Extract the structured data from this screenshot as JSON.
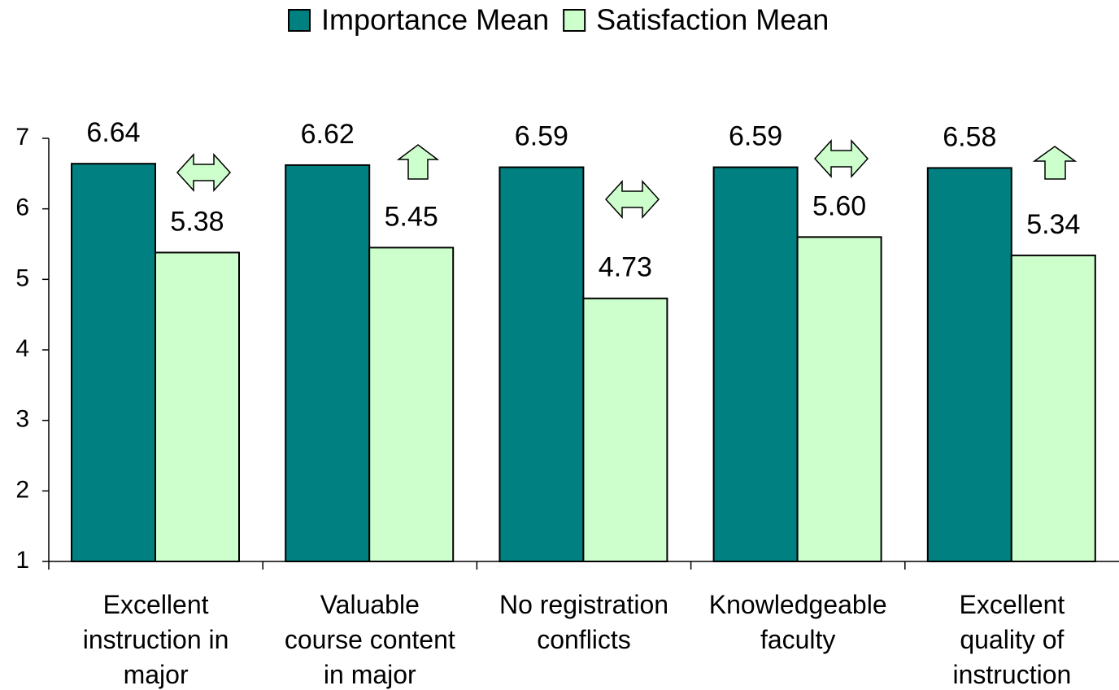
{
  "chart_data": {
    "type": "bar",
    "categories": [
      "Excellent\ninstruction in\nmajor",
      "Valuable\ncourse content\nin major",
      "No registration\nconflicts",
      "Knowledgeable\nfaculty",
      "Excellent\nquality of\ninstruction"
    ],
    "series": [
      {
        "name": "Importance Mean",
        "color": "#008080",
        "values": [
          6.64,
          6.62,
          6.59,
          6.59,
          6.58
        ]
      },
      {
        "name": "Satisfaction Mean",
        "color": "#ccffcc",
        "values": [
          5.38,
          5.45,
          4.73,
          5.6,
          5.34
        ],
        "value_labels": [
          "5.38",
          "5.45",
          "4.73",
          "5.60",
          "5.34"
        ]
      }
    ],
    "ylim": [
      1,
      7
    ],
    "yticks": [
      1,
      2,
      3,
      4,
      5,
      6,
      7
    ],
    "grid": false,
    "legend": "top"
  }
}
